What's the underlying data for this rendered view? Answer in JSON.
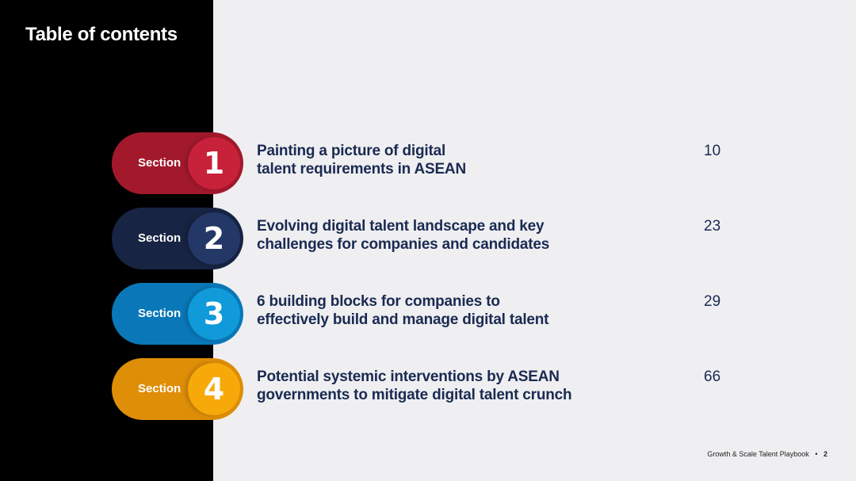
{
  "page": {
    "title": "Table of contents"
  },
  "sections": [
    {
      "label": "Section",
      "number": "1",
      "title_line1": "Painting a picture of digital",
      "title_line2": "talent requirements in ASEAN",
      "page": "10",
      "pill_color": "#a3192c",
      "circle_color": "#c8213a"
    },
    {
      "label": "Section",
      "number": "2",
      "title_line1": "Evolving digital talent landscape and key",
      "title_line2": "challenges for companies and candidates",
      "page": "23",
      "pill_color": "#172443",
      "circle_color": "#233866"
    },
    {
      "label": "Section",
      "number": "3",
      "title_line1": "6 building blocks for companies to",
      "title_line2": "effectively build and manage digital talent",
      "page": "29",
      "pill_color": "#0a78b8",
      "circle_color": "#109ad9"
    },
    {
      "label": "Section",
      "number": "4",
      "title_line1": "Potential systemic interventions by ASEAN",
      "title_line2": "governments to mitigate digital talent crunch",
      "page": "66",
      "pill_color": "#df8e08",
      "circle_color": "#f7a90a"
    }
  ],
  "footer": {
    "text": "Growth & Scale Talent Playbook",
    "separator": "•",
    "page": "2"
  }
}
